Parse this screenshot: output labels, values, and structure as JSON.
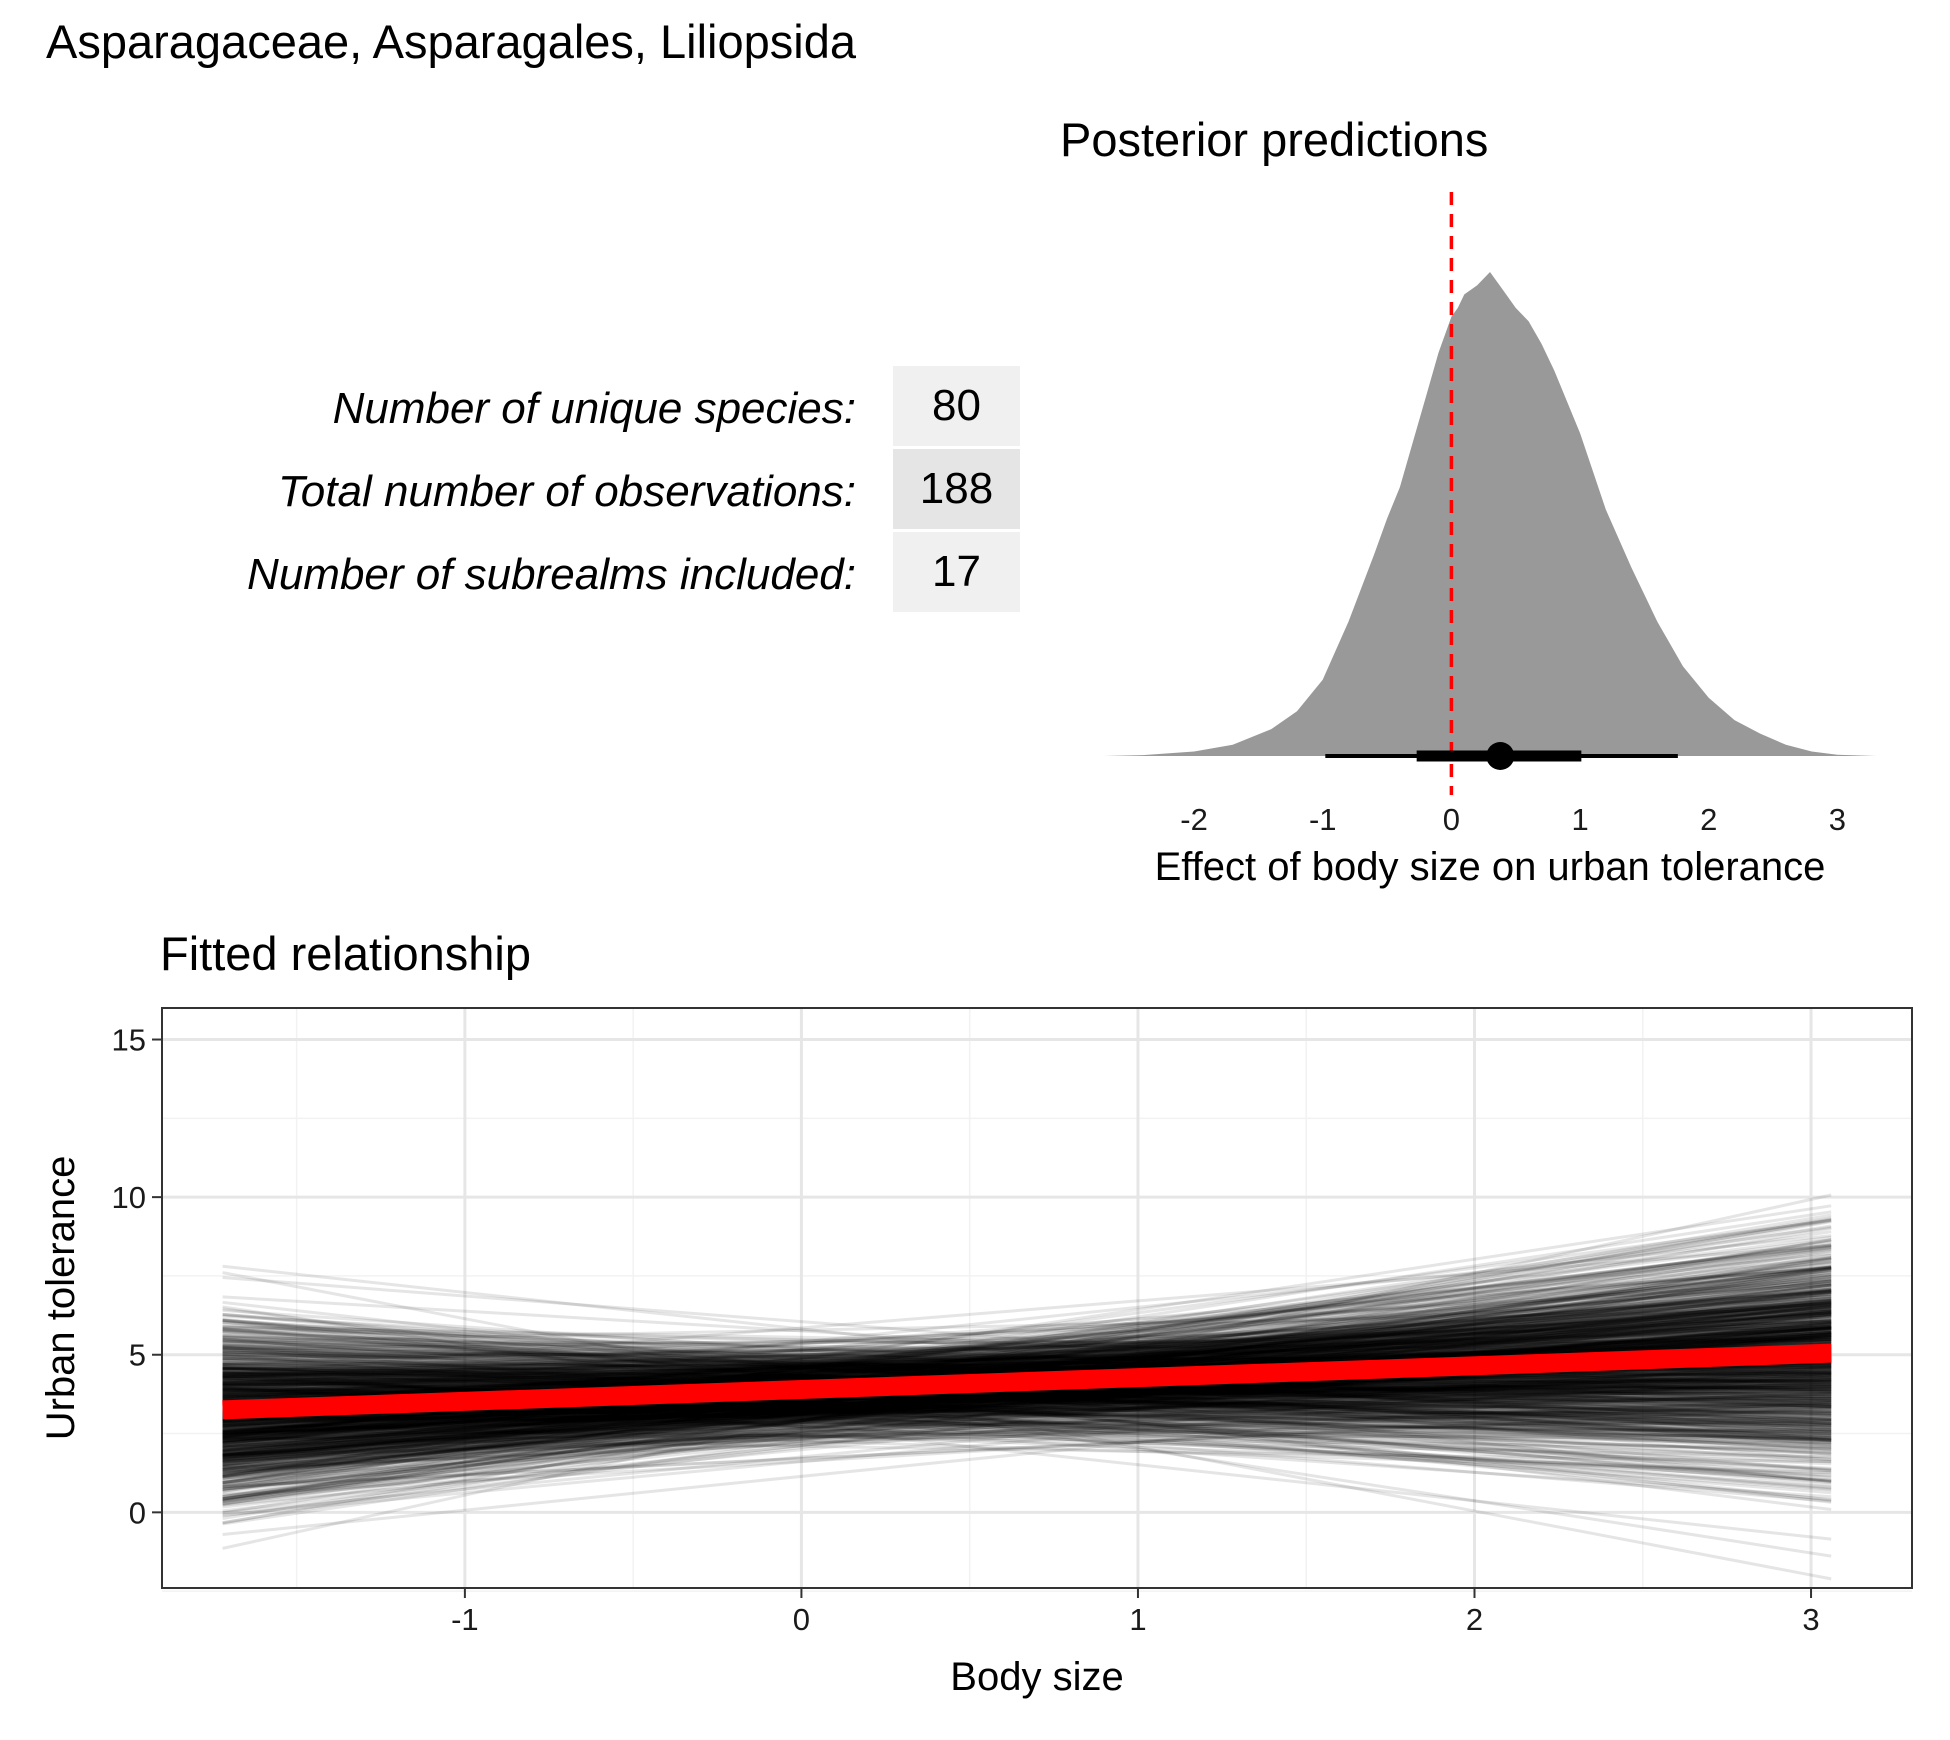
{
  "header": {
    "title": "Asparagaceae, Asparagales, Liliopsida"
  },
  "stats_table": {
    "rows": [
      {
        "label": "Number of unique species:",
        "value": "80"
      },
      {
        "label": "Total number of observations:",
        "value": "188"
      },
      {
        "label": "Number of subrealms included:",
        "value": "17"
      }
    ],
    "cell_colors": [
      "#f0f0f0",
      "#e5e5e5",
      "#f0f0f0"
    ]
  },
  "chart_data": [
    {
      "type": "area",
      "title": "Posterior predictions",
      "xlabel": "Effect of body size on urban tolerance",
      "ylabel": "",
      "xlim": [
        -2.7,
        3.3
      ],
      "x_ticks": [
        "-2",
        "-1",
        "0",
        "1",
        "2",
        "3"
      ],
      "density": {
        "x": [
          -2.7,
          -2.4,
          -2.0,
          -1.7,
          -1.4,
          -1.2,
          -1.0,
          -0.8,
          -0.6,
          -0.5,
          -0.4,
          -0.3,
          -0.2,
          -0.1,
          0.0,
          0.05,
          0.1,
          0.2,
          0.3,
          0.4,
          0.5,
          0.6,
          0.7,
          0.8,
          1.0,
          1.2,
          1.4,
          1.6,
          1.8,
          2.0,
          2.2,
          2.4,
          2.6,
          2.8,
          3.0,
          3.3
        ],
        "y": [
          0.0,
          0.002,
          0.01,
          0.025,
          0.06,
          0.1,
          0.17,
          0.3,
          0.45,
          0.53,
          0.6,
          0.7,
          0.8,
          0.9,
          0.98,
          1.0,
          1.03,
          1.05,
          1.08,
          1.04,
          1.0,
          0.97,
          0.92,
          0.86,
          0.72,
          0.55,
          0.42,
          0.3,
          0.2,
          0.13,
          0.08,
          0.05,
          0.025,
          0.01,
          0.003,
          0.0
        ]
      },
      "reference_line": {
        "x": 0,
        "color": "#ff0000",
        "style": "dashed"
      },
      "point_interval": {
        "point": 0.38,
        "inner": [
          -0.27,
          1.01
        ],
        "outer": [
          -0.98,
          1.76
        ]
      },
      "fill_color": "#999999"
    },
    {
      "type": "line",
      "title": "Fitted relationship",
      "xlabel": "Body size",
      "ylabel": "Urban tolerance",
      "xlim": [
        -1.9,
        3.3
      ],
      "ylim": [
        -2.4,
        16.0
      ],
      "x_ticks": [
        "-1",
        "0",
        "1",
        "2",
        "3"
      ],
      "y_ticks": [
        "0",
        "5",
        "10",
        "15"
      ],
      "grid": true,
      "x_range": [
        -1.72,
        3.06
      ],
      "draws": {
        "count": 1000,
        "pivot_x": 0.3,
        "center_mean": 3.9,
        "center_sd": 0.7,
        "slope_mean": 0.38,
        "slope_sd": 0.6,
        "color": "#000000",
        "opacity": 0.1
      },
      "series": [
        {
          "values": [
            3.25,
            5.05
          ],
          "x": [
            -1.72,
            3.06
          ],
          "color": "#ff0000"
        }
      ]
    }
  ]
}
